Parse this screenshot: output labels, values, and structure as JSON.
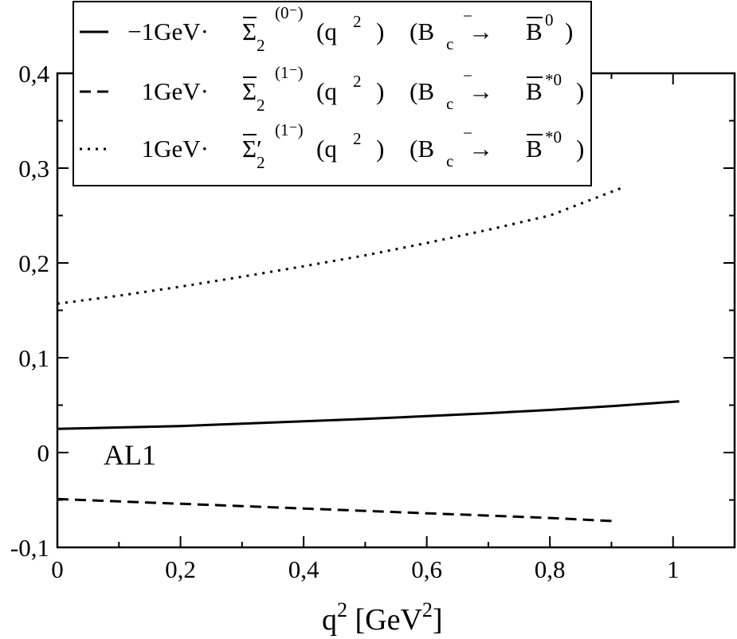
{
  "chart_data": {
    "type": "line",
    "xlabel": "q",
    "xlabel_sup": "2",
    "xlabel_unit_open": " [GeV",
    "xlabel_unit_sup": "2",
    "xlabel_unit_close": "]",
    "ylabel": "",
    "xlim": [
      0,
      1.1
    ],
    "ylim": [
      -0.1,
      0.4
    ],
    "x_ticks": [
      0,
      0.2,
      0.4,
      0.6,
      0.8,
      1.0
    ],
    "x_tick_labels": [
      "0",
      "0,2",
      "0,4",
      "0,6",
      "0,8",
      "1"
    ],
    "y_ticks": [
      -0.1,
      0,
      0.1,
      0.2,
      0.3,
      0.4
    ],
    "y_tick_labels": [
      "-0,1",
      "0",
      "0,1",
      "0,2",
      "0,3",
      "0,4"
    ],
    "grid": false,
    "legend_position": "top-left",
    "annotation": "AL1",
    "series": [
      {
        "style": "solid",
        "legend": {
          "prefix": "−1GeV·",
          "symbol": "Σ",
          "sub": "2",
          "sup": "(0⁻)",
          "arg": "(q",
          "arg_sup": "2",
          "arg_close": ")",
          "process": "(B",
          "process_sub": "c",
          "process_sup": "−",
          "arrow": "→",
          "final": "B",
          "final_sup": "0",
          "close": ")"
        },
        "x": [
          0,
          0.1,
          0.2,
          0.3,
          0.4,
          0.5,
          0.6,
          0.7,
          0.8,
          0.9,
          1.01
        ],
        "y": [
          0.025,
          0.0265,
          0.028,
          0.0305,
          0.033,
          0.0355,
          0.0385,
          0.0415,
          0.045,
          0.049,
          0.054
        ]
      },
      {
        "style": "dashed",
        "legend": {
          "prefix": "1GeV·",
          "symbol": "Σ",
          "sub": "2",
          "sup": "(1⁻)",
          "arg": "(q",
          "arg_sup": "2",
          "arg_close": ")",
          "process": "(B",
          "process_sub": "c",
          "process_sup": "−",
          "arrow": "→",
          "final": "B",
          "final_sup": "*0",
          "close": ")"
        },
        "x": [
          0,
          0.1,
          0.2,
          0.3,
          0.4,
          0.5,
          0.6,
          0.7,
          0.8,
          0.91
        ],
        "y": [
          -0.049,
          -0.0515,
          -0.054,
          -0.0565,
          -0.059,
          -0.0615,
          -0.064,
          -0.0665,
          -0.069,
          -0.0725
        ]
      },
      {
        "style": "dotted",
        "legend": {
          "prefix": "1GeV·",
          "symbol": "Σ′",
          "sub": "2",
          "sup": "(1⁻)",
          "arg": "(q",
          "arg_sup": "2",
          "arg_close": ")",
          "process": "(B",
          "process_sub": "c",
          "process_sup": "−",
          "arrow": "→",
          "final": "B",
          "final_sup": "*0",
          "close": ")"
        },
        "x": [
          0,
          0.1,
          0.2,
          0.3,
          0.4,
          0.5,
          0.6,
          0.7,
          0.8,
          0.92
        ],
        "y": [
          0.157,
          0.1655,
          0.175,
          0.1855,
          0.1965,
          0.208,
          0.221,
          0.235,
          0.25,
          0.28
        ]
      }
    ]
  }
}
